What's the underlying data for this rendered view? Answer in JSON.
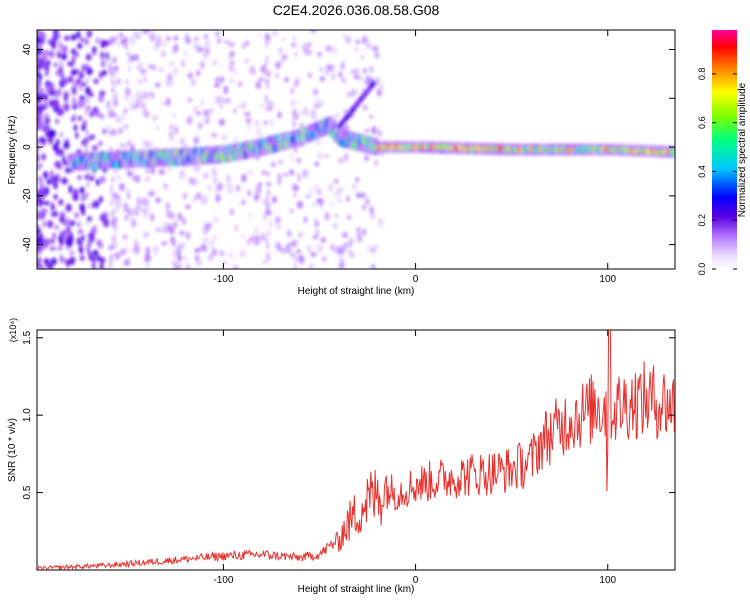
{
  "title": "C2E4.2026.036.08.58.G08",
  "chart_data": [
    {
      "type": "heatmap",
      "xlabel": "Height of straight line (km)",
      "ylabel": "Frequency (Hz)",
      "xlim": [
        -197,
        135
      ],
      "ylim": [
        -50,
        48
      ],
      "x_ticks": [
        -100,
        0,
        100
      ],
      "y_ticks": [
        -40,
        -20,
        0,
        20,
        40
      ],
      "colorbar": {
        "label": "Normalized spectral amplitude",
        "range": [
          0,
          0.98
        ],
        "ticks": [
          0.0,
          0.2,
          0.4,
          0.6,
          0.8
        ],
        "colors": [
          "#ffffff",
          "#e0c8ff",
          "#b070ff",
          "#5a00e0",
          "#0000ff",
          "#00c8ff",
          "#00ff80",
          "#80ff00",
          "#ffff00",
          "#ff8000",
          "#ff0000",
          "#ff00a0"
        ]
      },
      "ridge": [
        {
          "x": -175,
          "y": -6
        },
        {
          "x": -150,
          "y": -5
        },
        {
          "x": -120,
          "y": -4
        },
        {
          "x": -100,
          "y": -3
        },
        {
          "x": -80,
          "y": 0
        },
        {
          "x": -60,
          "y": 4
        },
        {
          "x": -45,
          "y": 9
        },
        {
          "x": -40,
          "y": 4
        },
        {
          "x": -30,
          "y": 2
        },
        {
          "x": -20,
          "y": 0
        },
        {
          "x": 0,
          "y": 0
        },
        {
          "x": 50,
          "y": -1
        },
        {
          "x": 100,
          "y": -1
        },
        {
          "x": 135,
          "y": -2
        }
      ]
    },
    {
      "type": "line",
      "xlabel": "Height of straight line (km)",
      "ylabel": "SNR (10 * v/v)",
      "y_multiplier": "(x10⁴)",
      "xlim": [
        -197,
        135
      ],
      "ylim": [
        0,
        1.55
      ],
      "x_ticks": [
        -100,
        0,
        100
      ],
      "y_ticks": [
        0.5,
        1.0,
        1.5
      ],
      "series": [
        {
          "color": "#e8302c",
          "x": [
            -197,
            -180,
            -160,
            -140,
            -120,
            -100,
            -80,
            -60,
            -50,
            -45,
            -40,
            -35,
            -30,
            -25,
            -20,
            -15,
            -10,
            0,
            10,
            20,
            30,
            40,
            50,
            60,
            65,
            70,
            75,
            80,
            85,
            90,
            95,
            100,
            105,
            110,
            120,
            130,
            135
          ],
          "y": [
            0.01,
            0.02,
            0.03,
            0.05,
            0.07,
            0.09,
            0.1,
            0.08,
            0.1,
            0.15,
            0.2,
            0.3,
            0.38,
            0.45,
            0.48,
            0.52,
            0.5,
            0.55,
            0.58,
            0.6,
            0.62,
            0.63,
            0.65,
            0.7,
            0.82,
            0.88,
            0.92,
            0.98,
            1.0,
            1.02,
            1.08,
            1.02,
            1.05,
            1.08,
            1.1,
            1.08,
            1.06
          ]
        }
      ]
    }
  ]
}
